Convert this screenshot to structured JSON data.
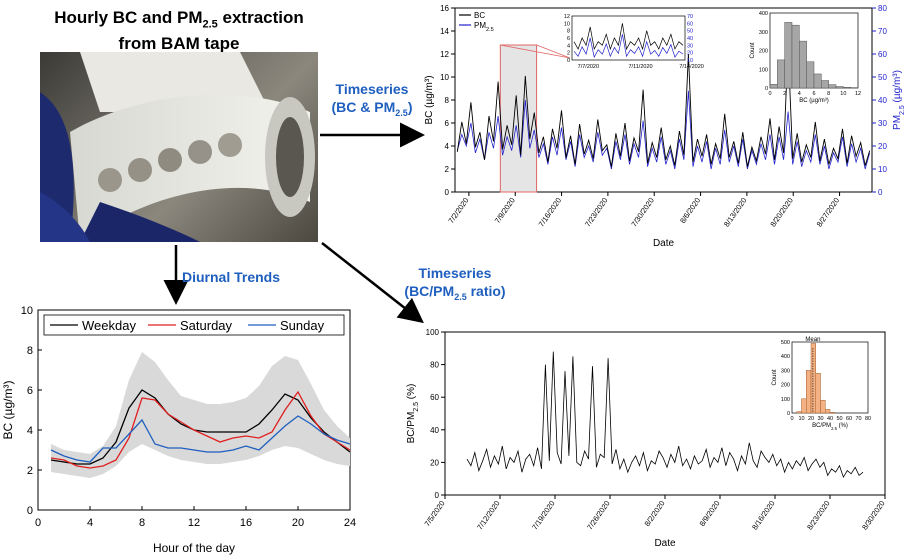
{
  "header": {
    "title_line1_prefix": "Hourly BC and PM",
    "title_line1_sub": "2.5",
    "title_line1_suffix": " extraction",
    "title_line2": "from BAM tape"
  },
  "arrows": {
    "timeseries_bc_pm_line1": "Timeseries",
    "timeseries_bc_pm_line2_prefix": "(BC & PM",
    "timeseries_bc_pm_line2_sub": "2.5",
    "timeseries_bc_pm_line2_suffix": ")",
    "diurnal": "Diurnal Trends",
    "ratio_line1": "Timeseries",
    "ratio_line2_prefix": "(BC/PM",
    "ratio_line2_sub": "2.5",
    "ratio_line2_suffix": " ratio)"
  },
  "colors": {
    "bc": "#000000",
    "pm": "#2222cc",
    "weekday": "#000000",
    "saturday": "#e02020",
    "sunday": "#1f5fbf",
    "band": "#d9d9d9",
    "hist_bc": "#a6a6a6",
    "hist_ratio": "#f4b183",
    "accent": "#1f5fbf"
  },
  "chart_data": [
    {
      "id": "timeseries_bc_pm",
      "type": "line",
      "xlabel": "Date",
      "ylabel_left": "BC (µg/m³)",
      "ylabel_right_prefix": "PM",
      "ylabel_right_sub": "2.5",
      "ylabel_right_suffix": " (µg/m³)",
      "ylim_left": [
        0,
        16
      ],
      "ylim_right": [
        0,
        80
      ],
      "yticks_left": [
        "0",
        "2",
        "4",
        "6",
        "8",
        "10",
        "12",
        "14",
        "16"
      ],
      "yticks_right": [
        "0",
        "10",
        "20",
        "30",
        "40",
        "50",
        "60",
        "70",
        "80"
      ],
      "xticks": [
        "7/2/2020",
        "7/9/2020",
        "7/16/2020",
        "7/23/2020",
        "7/30/2020",
        "8/6/2020",
        "8/13/2020",
        "8/20/2020",
        "8/27/2020"
      ],
      "legend": [
        "BC",
        "PM2.5"
      ],
      "series": [
        {
          "name": "BC",
          "values": [
            3.5,
            6.1,
            4.2,
            7.8,
            3.9,
            5.2,
            2.8,
            6.6,
            4.4,
            9.6,
            3.7,
            5.8,
            4.1,
            8.4,
            3.2,
            10.1,
            4.6,
            6.9,
            3.4,
            4.8,
            2.6,
            5.5,
            3.8,
            7.1,
            3.0,
            4.9,
            2.4,
            5.9,
            3.3,
            4.5,
            2.9,
            6.3,
            3.6,
            4.1,
            2.2,
            5.1,
            3.1,
            6.0,
            2.7,
            4.7,
            3.5,
            8.9,
            2.5,
            4.3,
            3.0,
            5.6,
            2.8,
            4.0,
            2.3,
            5.3,
            3.2,
            12.0,
            2.6,
            4.6,
            3.1,
            5.0,
            2.4,
            4.2,
            2.9,
            6.8,
            3.0,
            4.4,
            2.5,
            5.2,
            2.2,
            3.9,
            2.7,
            4.8,
            3.3,
            6.4,
            2.8,
            5.7,
            3.4,
            12.7,
            2.9,
            5.1,
            2.6,
            4.1,
            3.0,
            6.1,
            2.7,
            4.6,
            2.4,
            3.8,
            2.9,
            5.5,
            2.5,
            4.9,
            3.1,
            4.3,
            2.3,
            3.6
          ]
        },
        {
          "name": "PM2.5",
          "values": [
            18,
            25,
            20,
            30,
            17,
            23,
            14,
            26,
            19,
            33,
            16,
            24,
            18,
            29,
            15,
            40,
            19,
            27,
            15,
            21,
            12,
            24,
            16,
            28,
            14,
            22,
            11,
            25,
            15,
            20,
            13,
            26,
            16,
            19,
            10,
            22,
            14,
            25,
            12,
            21,
            15,
            31,
            11,
            19,
            13,
            24,
            12,
            18,
            10,
            23,
            14,
            44,
            11,
            20,
            13,
            22,
            10,
            19,
            12,
            27,
            13,
            20,
            11,
            23,
            10,
            18,
            12,
            21,
            14,
            25,
            12,
            24,
            14,
            35,
            12,
            22,
            11,
            18,
            13,
            25,
            12,
            20,
            10,
            17,
            13,
            24,
            11,
            21,
            13,
            19,
            10,
            17
          ]
        }
      ],
      "inset_timeseries": {
        "xticks": [
          "7/7/2020",
          "7/11/2020",
          "7/14/2020"
        ],
        "yticks_left": [
          "0",
          "2",
          "4",
          "6",
          "8",
          "10",
          "12"
        ],
        "yticks_right": [
          "10",
          "20",
          "30",
          "40",
          "50",
          "60",
          "70"
        ],
        "ylim_left": [
          0,
          12
        ],
        "bc": [
          5,
          3,
          6,
          4,
          9,
          3,
          5,
          4,
          7,
          3,
          6,
          4,
          10,
          3,
          5,
          4,
          6,
          3,
          8,
          4,
          5,
          3,
          6,
          4,
          7,
          3,
          5,
          4
        ],
        "pm": [
          22,
          15,
          28,
          18,
          40,
          14,
          24,
          18,
          32,
          15,
          27,
          19,
          45,
          15,
          24,
          19,
          28,
          15,
          35,
          18,
          23,
          15,
          27,
          19,
          31,
          14,
          22,
          18
        ]
      },
      "inset_histogram": {
        "xlabel": "BC (µg/m³)",
        "ylabel": "Count",
        "xticks": [
          "0",
          "2",
          "4",
          "6",
          "8",
          "10",
          "12"
        ],
        "yticks": [
          "0",
          "100",
          "200",
          "300",
          "400"
        ],
        "ylim": [
          0,
          400
        ],
        "bin_width": 1,
        "bin_starts": [
          0,
          1,
          2,
          3,
          4,
          5,
          6,
          7,
          8,
          9,
          10,
          11
        ],
        "counts": [
          20,
          150,
          350,
          335,
          250,
          140,
          75,
          40,
          18,
          8,
          4,
          2
        ]
      }
    },
    {
      "id": "diurnal",
      "type": "line",
      "xlabel": "Hour of the day",
      "ylabel": "BC (µg/m³)",
      "ylim": [
        0,
        10
      ],
      "xlim": [
        0,
        24
      ],
      "xticks": [
        "0",
        "4",
        "8",
        "12",
        "16",
        "20",
        "24"
      ],
      "yticks": [
        "0",
        "2",
        "4",
        "6",
        "8",
        "10"
      ],
      "legend_placement": "top",
      "x": [
        1,
        2,
        3,
        4,
        5,
        6,
        7,
        8,
        9,
        10,
        11,
        12,
        13,
        14,
        15,
        16,
        17,
        18,
        19,
        20,
        21,
        22,
        23,
        24
      ],
      "band_upper": [
        3.3,
        3.0,
        2.9,
        2.8,
        3.2,
        4.2,
        6.5,
        7.9,
        7.4,
        6.5,
        5.7,
        5.5,
        5.3,
        5.3,
        5.4,
        5.6,
        6.2,
        7.2,
        7.7,
        7.5,
        6.3,
        5.0,
        4.2,
        3.6
      ],
      "band_lower": [
        1.9,
        1.8,
        1.7,
        1.6,
        1.8,
        2.2,
        2.9,
        3.3,
        3.0,
        2.7,
        2.5,
        2.4,
        2.3,
        2.3,
        2.4,
        2.5,
        2.7,
        3.0,
        3.2,
        3.1,
        2.8,
        2.5,
        2.3,
        2.2
      ],
      "series": [
        {
          "name": "Weekday",
          "values": [
            2.5,
            2.4,
            2.3,
            2.3,
            2.6,
            3.4,
            5.1,
            6.0,
            5.6,
            4.8,
            4.3,
            4.0,
            3.9,
            3.9,
            3.9,
            3.9,
            4.3,
            5.0,
            5.8,
            5.5,
            4.6,
            3.9,
            3.4,
            2.9
          ]
        },
        {
          "name": "Saturday",
          "values": [
            2.6,
            2.5,
            2.2,
            2.1,
            2.2,
            2.5,
            3.6,
            5.6,
            5.5,
            4.8,
            4.4,
            4.0,
            3.7,
            3.4,
            3.6,
            3.7,
            3.6,
            3.9,
            5.0,
            5.9,
            4.7,
            3.8,
            3.4,
            3.0
          ]
        },
        {
          "name": "Sunday",
          "values": [
            3.0,
            2.7,
            2.5,
            2.4,
            3.1,
            3.1,
            3.8,
            4.5,
            3.3,
            3.1,
            3.1,
            3.0,
            2.9,
            2.9,
            3.0,
            3.2,
            3.0,
            3.6,
            4.2,
            4.7,
            4.3,
            3.8,
            3.5,
            3.3
          ]
        }
      ]
    },
    {
      "id": "ratio_timeseries",
      "type": "line",
      "xlabel": "Date",
      "ylabel_prefix": "BC/PM",
      "ylabel_sub": "2.5",
      "ylabel_suffix": " (%)",
      "ylim": [
        0,
        100
      ],
      "yticks": [
        "0",
        "20",
        "40",
        "60",
        "80",
        "100"
      ],
      "xticks": [
        "7/5/2020",
        "7/12/2020",
        "7/19/2020",
        "7/26/2020",
        "8/2/2020",
        "8/9/2020",
        "8/16/2020",
        "8/23/2020",
        "8/30/2020"
      ],
      "values": [
        22,
        18,
        26,
        15,
        21,
        28,
        17,
        24,
        19,
        30,
        16,
        23,
        20,
        27,
        14,
        22,
        25,
        18,
        29,
        16,
        80,
        21,
        88,
        26,
        19,
        76,
        24,
        85,
        20,
        18,
        27,
        22,
        79,
        17,
        25,
        23,
        84,
        19,
        28,
        16,
        22,
        14,
        20,
        24,
        18,
        26,
        15,
        21,
        19,
        27,
        23,
        17,
        25,
        20,
        30,
        18,
        22,
        16,
        24,
        19,
        21,
        28,
        17,
        23,
        20,
        29,
        18,
        26,
        22,
        15,
        24,
        19,
        32,
        21,
        17,
        27,
        23,
        20,
        25,
        18,
        22,
        14,
        20,
        16,
        21,
        18,
        23,
        15,
        19,
        22,
        17,
        20,
        12,
        16,
        14,
        18,
        11,
        15,
        13,
        17,
        12,
        14
      ],
      "inset_histogram": {
        "title": "Mean",
        "xlabel_prefix": "BC/PM",
        "xlabel_sub": "2.5",
        "xlabel_suffix": " (%)",
        "ylabel": "Count",
        "xticks": [
          "0",
          "10",
          "20",
          "30",
          "40",
          "50",
          "60",
          "70",
          "80"
        ],
        "yticks": [
          "0",
          "100",
          "200",
          "300",
          "400",
          "500"
        ],
        "ylim": [
          0,
          500
        ],
        "bin_width": 5,
        "bin_starts": [
          5,
          10,
          15,
          20,
          25,
          30,
          35,
          40
        ],
        "counts": [
          10,
          100,
          300,
          490,
          280,
          90,
          25,
          5
        ],
        "mean": 22
      }
    }
  ]
}
